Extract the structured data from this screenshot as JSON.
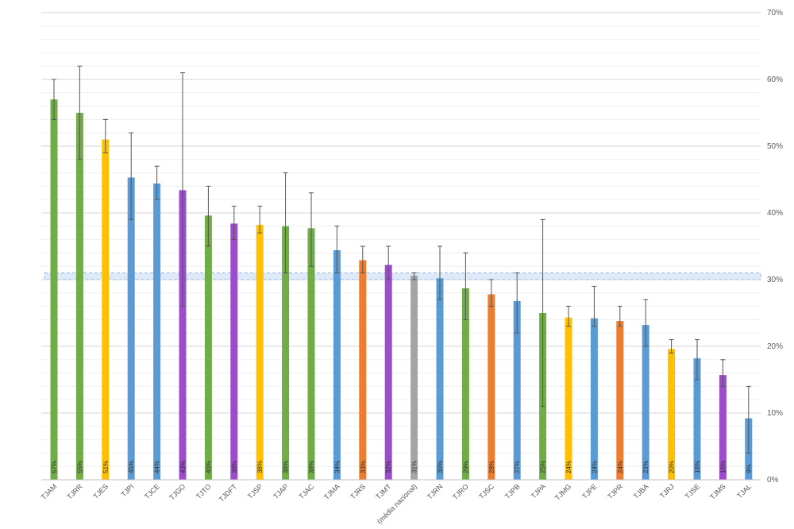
{
  "chart_data": {
    "type": "bar",
    "categories": [
      "TJAM",
      "TJRR",
      "TJES",
      "TJPI",
      "TJCE",
      "TJGO",
      "TJTO",
      "TJDFT",
      "TJSP",
      "TJAP",
      "TJAC",
      "TJMA",
      "TJRS",
      "TJMT",
      "(média nacional)",
      "TJRN",
      "TJRO",
      "TJSC",
      "TJPB",
      "TJPA",
      "TJMG",
      "TJPE",
      "TJPR",
      "TJBA",
      "TJRJ",
      "TJSE",
      "TJMS",
      "TJAL"
    ],
    "values": [
      57,
      55,
      51,
      45,
      44,
      43,
      40,
      38,
      38,
      38,
      38,
      34,
      33,
      32,
      31,
      30,
      29,
      28,
      27,
      25,
      24,
      24,
      24,
      23,
      20,
      18,
      16,
      9
    ],
    "exact_values": [
      57,
      55,
      51,
      45.3,
      44.4,
      43.4,
      39.6,
      38.4,
      38.2,
      38,
      37.7,
      34.4,
      32.9,
      32.2,
      30.6,
      30.2,
      28.7,
      27.8,
      26.8,
      25,
      24.3,
      24.2,
      23.8,
      23.2,
      19.6,
      18.2,
      15.7,
      9.2
    ],
    "value_labels": [
      "57%",
      "55%",
      "51%",
      "45%",
      "44%",
      "43%",
      "40%",
      "38%",
      "38%",
      "38%",
      "38%",
      "34%",
      "33%",
      "32%",
      "31%",
      "30%",
      "29%",
      "28%",
      "27%",
      "25%",
      "24%",
      "24%",
      "24%",
      "23%",
      "20%",
      "18%",
      "16%",
      "9%"
    ],
    "error_low": [
      54,
      48,
      49,
      39,
      42,
      26,
      35,
      36,
      37,
      31,
      32,
      31,
      31,
      30,
      30,
      27,
      24,
      26,
      22,
      11,
      23,
      23,
      23,
      20,
      19,
      15,
      14,
      4
    ],
    "error_high": [
      60,
      62,
      54,
      52,
      47,
      61,
      44,
      41,
      41,
      46,
      43,
      38,
      35,
      35,
      31,
      35,
      34,
      30,
      31,
      39,
      26,
      29,
      26,
      27,
      21,
      21,
      18,
      14
    ],
    "colors": [
      "#70ad47",
      "#70ad47",
      "#ffc000",
      "#5b9bd5",
      "#5b9bd5",
      "#9b4dca",
      "#70ad47",
      "#9b4dca",
      "#ffc000",
      "#70ad47",
      "#70ad47",
      "#5b9bd5",
      "#ed7d31",
      "#9b4dca",
      "#a5a5a5",
      "#5b9bd5",
      "#70ad47",
      "#ed7d31",
      "#5b9bd5",
      "#70ad47",
      "#ffc000",
      "#5b9bd5",
      "#ed7d31",
      "#5b9bd5",
      "#ffc000",
      "#5b9bd5",
      "#9b4dca",
      "#5b9bd5"
    ],
    "reference_band": {
      "low": 30,
      "high": 31,
      "color": "#dbe8f7",
      "border_color": "#9ab8e4"
    },
    "y_ticks": [
      "0%",
      "10%",
      "20%",
      "30%",
      "40%",
      "50%",
      "60%",
      "70%"
    ],
    "ylim": [
      0,
      70
    ],
    "y_axis_side": "right",
    "grid": true,
    "title": "",
    "xlabel": "",
    "ylabel": ""
  }
}
